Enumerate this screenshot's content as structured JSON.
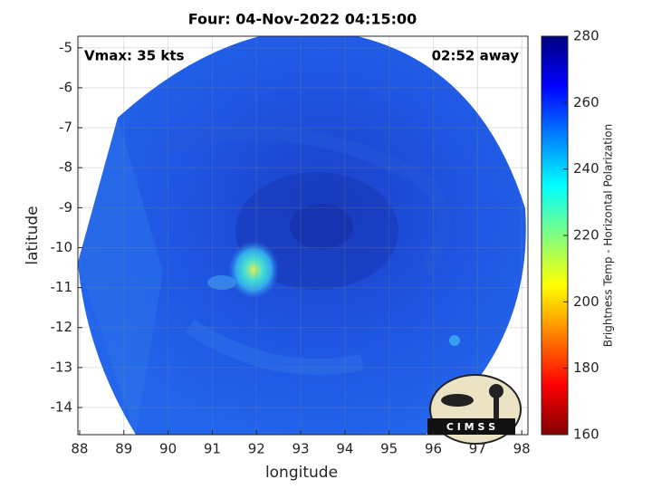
{
  "chart_data": {
    "type": "image-map",
    "title": "Four: 04-Nov-2022 04:15:00",
    "annotations": [
      "Vmax: 35 kts",
      "02:52 away"
    ],
    "x_label": "longitude",
    "y_label": "latitude",
    "logo": "C I M S S",
    "xlim": [
      87.96,
      98.14
    ],
    "ylim": [
      -14.68,
      -4.71
    ],
    "xticks": [
      88,
      89,
      90,
      91,
      92,
      93,
      94,
      95,
      96,
      97,
      98
    ],
    "yticks": [
      -5,
      -6,
      -7,
      -8,
      -9,
      -10,
      -11,
      -12,
      -13,
      -14
    ],
    "grid": true,
    "colorbar": {
      "label": "Brightness Temp - Horizontal Polarization",
      "lim": [
        160,
        280
      ],
      "ticks": [
        160,
        180,
        200,
        220,
        240,
        260,
        280
      ],
      "colors": [
        "#800000",
        "#ff0000",
        "#ff8000",
        "#ffff00",
        "#80ff80",
        "#00ffff",
        "#0080ff",
        "#0000ff",
        "#000080"
      ]
    }
  }
}
